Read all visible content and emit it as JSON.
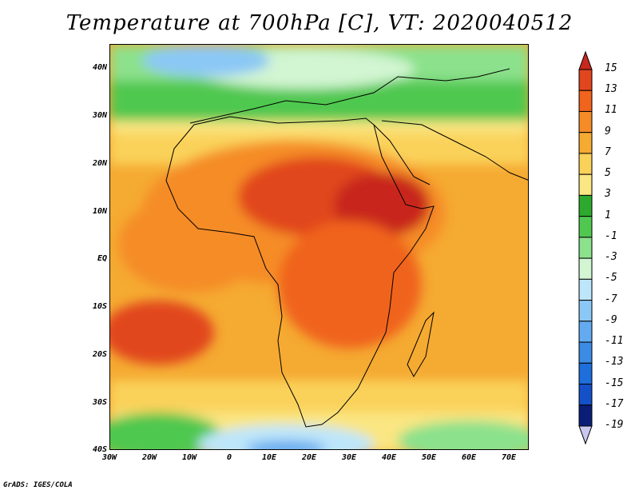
{
  "title": "Temperature at 700hPa [C], VT: 2020040512",
  "footer": "GrADS: IGES/COLA",
  "map": {
    "lat_labels": [
      "40N",
      "30N",
      "20N",
      "10N",
      "EQ",
      "10S",
      "20S",
      "30S",
      "40S"
    ],
    "lon_labels": [
      "30W",
      "20W",
      "10W",
      "0",
      "10E",
      "20E",
      "30E",
      "40E",
      "50E",
      "60E",
      "70E"
    ]
  },
  "colorbar": {
    "labels": [
      "15",
      "13",
      "11",
      "9",
      "7",
      "5",
      "3",
      "1",
      "-1",
      "-3",
      "-5",
      "-7",
      "-9",
      "-11",
      "-13",
      "-15",
      "-17",
      "-19"
    ],
    "colors": [
      "#c8281e",
      "#e1461e",
      "#f0641e",
      "#f58c28",
      "#f5aa32",
      "#fad25a",
      "#fae682",
      "#2daa2d",
      "#50c850",
      "#8ce18c",
      "#d2f5d2",
      "#bee6fa",
      "#8cc8f5",
      "#64aaf0",
      "#3c8ce6",
      "#1e6edc",
      "#1450c8",
      "#0a1e78",
      "#c8c8f0"
    ]
  }
}
